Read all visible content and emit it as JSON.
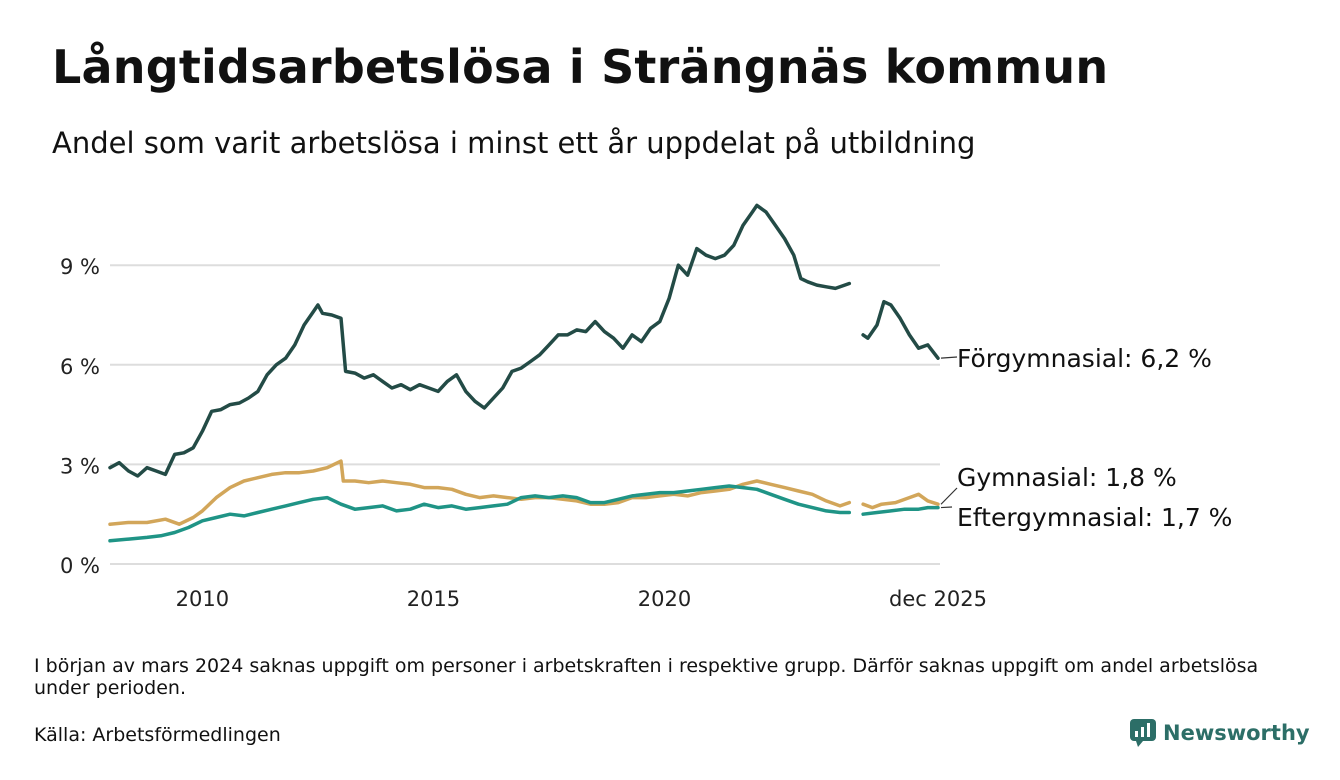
{
  "header": {
    "title": "Långtidsarbetslösa i Strängnäs kommun",
    "subtitle": "Andel som varit arbetslösa i minst ett år uppdelat på utbildning"
  },
  "footer": {
    "note": "I början av mars 2024 saknas uppgift om personer i arbetskraften i respektive grupp. Därför saknas uppgift om andel arbetslösa under perioden.",
    "source": "Källa: Arbetsförmedlingen",
    "brand": "Newsworthy",
    "brand_icon": "newsworthy-logo-icon",
    "brand_color": "#2c6e67"
  },
  "chart_data": {
    "type": "line",
    "x_unit": "year (decimal, monthly data)",
    "xlim": [
      2008.0,
      2025.92
    ],
    "ylim": [
      0,
      11
    ],
    "y_ticks": [
      {
        "value": 0,
        "label": "0 %"
      },
      {
        "value": 3,
        "label": "3 %"
      },
      {
        "value": 6,
        "label": "6 %"
      },
      {
        "value": 9,
        "label": "9 %"
      }
    ],
    "x_ticks": [
      {
        "value": 2010,
        "label": "2010"
      },
      {
        "value": 2015,
        "label": "2015"
      },
      {
        "value": 2020,
        "label": "2020"
      },
      {
        "value": 2025.92,
        "label": "dec 2025"
      }
    ],
    "grid": true,
    "gap": {
      "from": 2024.0,
      "to": 2024.3
    },
    "series": [
      {
        "name": "Förgymnasial",
        "end_label": "Förgymnasial: 6,2 %",
        "color": "#234b46",
        "points": [
          [
            2008.0,
            2.9
          ],
          [
            2008.2,
            3.05
          ],
          [
            2008.4,
            2.8
          ],
          [
            2008.6,
            2.65
          ],
          [
            2008.8,
            2.9
          ],
          [
            2009.0,
            2.8
          ],
          [
            2009.2,
            2.7
          ],
          [
            2009.4,
            3.3
          ],
          [
            2009.6,
            3.35
          ],
          [
            2009.8,
            3.5
          ],
          [
            2010.0,
            4.0
          ],
          [
            2010.2,
            4.6
          ],
          [
            2010.4,
            4.65
          ],
          [
            2010.6,
            4.8
          ],
          [
            2010.8,
            4.85
          ],
          [
            2011.0,
            5.0
          ],
          [
            2011.2,
            5.2
          ],
          [
            2011.4,
            5.7
          ],
          [
            2011.6,
            6.0
          ],
          [
            2011.8,
            6.2
          ],
          [
            2012.0,
            6.6
          ],
          [
            2012.2,
            7.2
          ],
          [
            2012.4,
            7.6
          ],
          [
            2012.5,
            7.8
          ],
          [
            2012.6,
            7.55
          ],
          [
            2012.8,
            7.5
          ],
          [
            2013.0,
            7.4
          ],
          [
            2013.1,
            5.8
          ],
          [
            2013.3,
            5.75
          ],
          [
            2013.5,
            5.6
          ],
          [
            2013.7,
            5.7
          ],
          [
            2013.9,
            5.5
          ],
          [
            2014.1,
            5.3
          ],
          [
            2014.3,
            5.4
          ],
          [
            2014.5,
            5.25
          ],
          [
            2014.7,
            5.4
          ],
          [
            2014.9,
            5.3
          ],
          [
            2015.1,
            5.2
          ],
          [
            2015.3,
            5.5
          ],
          [
            2015.5,
            5.7
          ],
          [
            2015.7,
            5.2
          ],
          [
            2015.9,
            4.9
          ],
          [
            2016.1,
            4.7
          ],
          [
            2016.3,
            5.0
          ],
          [
            2016.5,
            5.3
          ],
          [
            2016.7,
            5.8
          ],
          [
            2016.9,
            5.9
          ],
          [
            2017.1,
            6.1
          ],
          [
            2017.3,
            6.3
          ],
          [
            2017.5,
            6.6
          ],
          [
            2017.7,
            6.9
          ],
          [
            2017.9,
            6.9
          ],
          [
            2018.1,
            7.05
          ],
          [
            2018.3,
            7.0
          ],
          [
            2018.5,
            7.3
          ],
          [
            2018.7,
            7.0
          ],
          [
            2018.9,
            6.8
          ],
          [
            2019.1,
            6.5
          ],
          [
            2019.3,
            6.9
          ],
          [
            2019.5,
            6.7
          ],
          [
            2019.7,
            7.1
          ],
          [
            2019.9,
            7.3
          ],
          [
            2020.1,
            8.0
          ],
          [
            2020.3,
            9.0
          ],
          [
            2020.5,
            8.7
          ],
          [
            2020.7,
            9.5
          ],
          [
            2020.9,
            9.3
          ],
          [
            2021.1,
            9.2
          ],
          [
            2021.3,
            9.3
          ],
          [
            2021.5,
            9.6
          ],
          [
            2021.7,
            10.2
          ],
          [
            2021.9,
            10.6
          ],
          [
            2022.0,
            10.8
          ],
          [
            2022.2,
            10.6
          ],
          [
            2022.4,
            10.2
          ],
          [
            2022.6,
            9.8
          ],
          [
            2022.8,
            9.3
          ],
          [
            2022.95,
            8.6
          ],
          [
            2023.1,
            8.5
          ],
          [
            2023.3,
            8.4
          ],
          [
            2023.5,
            8.35
          ],
          [
            2023.7,
            8.3
          ],
          [
            2023.9,
            8.4
          ],
          [
            2024.0,
            8.45
          ],
          [
            2024.3,
            6.9
          ],
          [
            2024.4,
            6.8
          ],
          [
            2024.6,
            7.2
          ],
          [
            2024.75,
            7.9
          ],
          [
            2024.9,
            7.8
          ],
          [
            2025.1,
            7.4
          ],
          [
            2025.3,
            6.9
          ],
          [
            2025.5,
            6.5
          ],
          [
            2025.7,
            6.6
          ],
          [
            2025.92,
            6.2
          ]
        ]
      },
      {
        "name": "Gymnasial",
        "end_label": "Gymnasial: 1,8 %",
        "color": "#d2a65a",
        "points": [
          [
            2008.0,
            1.2
          ],
          [
            2008.4,
            1.25
          ],
          [
            2008.8,
            1.25
          ],
          [
            2009.2,
            1.35
          ],
          [
            2009.5,
            1.2
          ],
          [
            2009.8,
            1.4
          ],
          [
            2010.0,
            1.6
          ],
          [
            2010.3,
            2.0
          ],
          [
            2010.6,
            2.3
          ],
          [
            2010.9,
            2.5
          ],
          [
            2011.2,
            2.6
          ],
          [
            2011.5,
            2.7
          ],
          [
            2011.8,
            2.75
          ],
          [
            2012.1,
            2.75
          ],
          [
            2012.4,
            2.8
          ],
          [
            2012.7,
            2.9
          ],
          [
            2013.0,
            3.1
          ],
          [
            2013.05,
            2.5
          ],
          [
            2013.3,
            2.5
          ],
          [
            2013.6,
            2.45
          ],
          [
            2013.9,
            2.5
          ],
          [
            2014.2,
            2.45
          ],
          [
            2014.5,
            2.4
          ],
          [
            2014.8,
            2.3
          ],
          [
            2015.1,
            2.3
          ],
          [
            2015.4,
            2.25
          ],
          [
            2015.7,
            2.1
          ],
          [
            2016.0,
            2.0
          ],
          [
            2016.3,
            2.05
          ],
          [
            2016.6,
            2.0
          ],
          [
            2016.9,
            1.95
          ],
          [
            2017.2,
            2.0
          ],
          [
            2017.5,
            2.0
          ],
          [
            2017.8,
            1.95
          ],
          [
            2018.1,
            1.9
          ],
          [
            2018.4,
            1.8
          ],
          [
            2018.7,
            1.8
          ],
          [
            2019.0,
            1.85
          ],
          [
            2019.3,
            2.0
          ],
          [
            2019.6,
            2.0
          ],
          [
            2019.9,
            2.05
          ],
          [
            2020.2,
            2.1
          ],
          [
            2020.5,
            2.05
          ],
          [
            2020.8,
            2.15
          ],
          [
            2021.1,
            2.2
          ],
          [
            2021.4,
            2.25
          ],
          [
            2021.7,
            2.4
          ],
          [
            2022.0,
            2.5
          ],
          [
            2022.3,
            2.4
          ],
          [
            2022.6,
            2.3
          ],
          [
            2022.9,
            2.2
          ],
          [
            2023.2,
            2.1
          ],
          [
            2023.5,
            1.9
          ],
          [
            2023.8,
            1.75
          ],
          [
            2024.0,
            1.85
          ],
          [
            2024.3,
            1.8
          ],
          [
            2024.5,
            1.7
          ],
          [
            2024.7,
            1.8
          ],
          [
            2025.0,
            1.85
          ],
          [
            2025.3,
            2.0
          ],
          [
            2025.5,
            2.1
          ],
          [
            2025.7,
            1.9
          ],
          [
            2025.92,
            1.8
          ]
        ]
      },
      {
        "name": "Eftergymnasial",
        "end_label": "Eftergymnasial: 1,7 %",
        "color": "#1f9486",
        "points": [
          [
            2008.0,
            0.7
          ],
          [
            2008.4,
            0.75
          ],
          [
            2008.8,
            0.8
          ],
          [
            2009.1,
            0.85
          ],
          [
            2009.4,
            0.95
          ],
          [
            2009.7,
            1.1
          ],
          [
            2010.0,
            1.3
          ],
          [
            2010.3,
            1.4
          ],
          [
            2010.6,
            1.5
          ],
          [
            2010.9,
            1.45
          ],
          [
            2011.2,
            1.55
          ],
          [
            2011.5,
            1.65
          ],
          [
            2011.8,
            1.75
          ],
          [
            2012.1,
            1.85
          ],
          [
            2012.4,
            1.95
          ],
          [
            2012.7,
            2.0
          ],
          [
            2013.0,
            1.8
          ],
          [
            2013.3,
            1.65
          ],
          [
            2013.6,
            1.7
          ],
          [
            2013.9,
            1.75
          ],
          [
            2014.2,
            1.6
          ],
          [
            2014.5,
            1.65
          ],
          [
            2014.8,
            1.8
          ],
          [
            2015.1,
            1.7
          ],
          [
            2015.4,
            1.75
          ],
          [
            2015.7,
            1.65
          ],
          [
            2016.0,
            1.7
          ],
          [
            2016.3,
            1.75
          ],
          [
            2016.6,
            1.8
          ],
          [
            2016.9,
            2.0
          ],
          [
            2017.2,
            2.05
          ],
          [
            2017.5,
            2.0
          ],
          [
            2017.8,
            2.05
          ],
          [
            2018.1,
            2.0
          ],
          [
            2018.4,
            1.85
          ],
          [
            2018.7,
            1.85
          ],
          [
            2019.0,
            1.95
          ],
          [
            2019.3,
            2.05
          ],
          [
            2019.6,
            2.1
          ],
          [
            2019.9,
            2.15
          ],
          [
            2020.2,
            2.15
          ],
          [
            2020.5,
            2.2
          ],
          [
            2020.8,
            2.25
          ],
          [
            2021.1,
            2.3
          ],
          [
            2021.4,
            2.35
          ],
          [
            2021.7,
            2.3
          ],
          [
            2022.0,
            2.25
          ],
          [
            2022.3,
            2.1
          ],
          [
            2022.6,
            1.95
          ],
          [
            2022.9,
            1.8
          ],
          [
            2023.2,
            1.7
          ],
          [
            2023.5,
            1.6
          ],
          [
            2023.8,
            1.55
          ],
          [
            2024.0,
            1.55
          ],
          [
            2024.3,
            1.5
          ],
          [
            2024.6,
            1.55
          ],
          [
            2024.9,
            1.6
          ],
          [
            2025.2,
            1.65
          ],
          [
            2025.5,
            1.65
          ],
          [
            2025.7,
            1.7
          ],
          [
            2025.92,
            1.7
          ]
        ]
      }
    ]
  }
}
